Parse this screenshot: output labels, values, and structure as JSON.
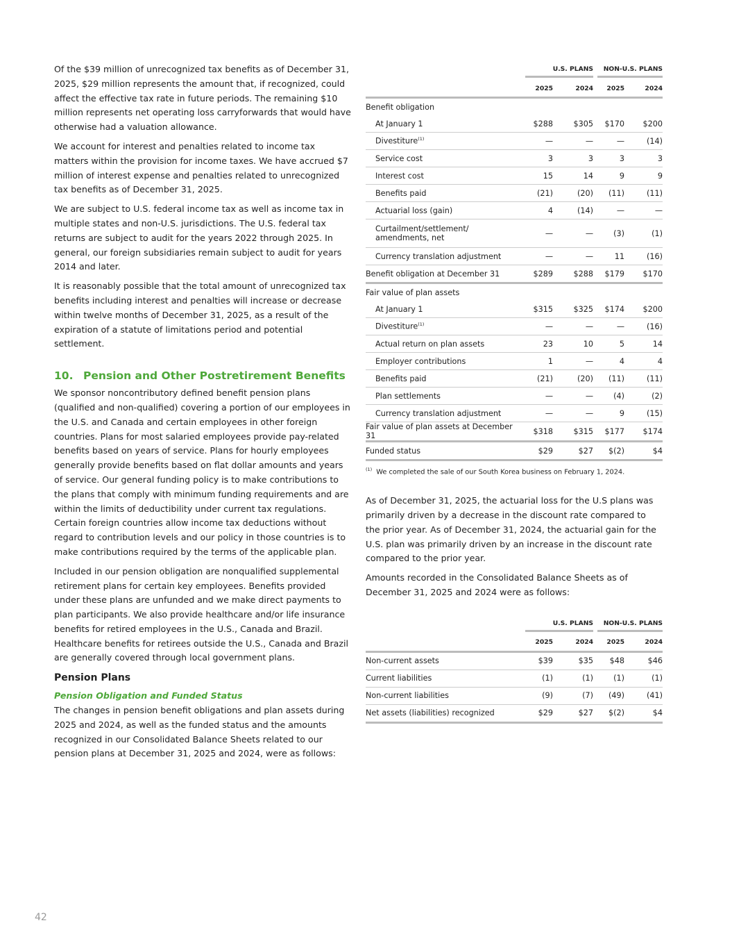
{
  "left": {
    "paragraphs": [
      "Of the $39 million of unrecognized tax benefits as of December 31, 2025, $29 million represents the amount that, if recognized, could affect the effective tax rate in future periods. The remaining $10 million represents net operating loss carryforwards that would have otherwise had a valuation allowance.",
      "We account for interest and penalties related to income tax matters within the provision for income taxes. We have accrued $7 million of interest expense and penalties related to unrecognized tax benefits as of December 31, 2025.",
      "We are subject to U.S. federal income tax as well as income tax in multiple states and non-U.S. jurisdictions. The U.S. federal tax returns are subject to audit for the years 2022 through 2025. In general, our foreign subsidiaries remain subject to audit for years 2014 and later.",
      "It is reasonably possible that the total amount of unrecognized tax benefits including interest and penalties will increase or decrease within twelve months of December 31, 2025, as a result of the expiration of a statute of limitations period and potential settlement."
    ],
    "section_heading": {
      "number": "10.",
      "title": "Pension and Other Postretirement Benefits"
    },
    "section_paragraphs": [
      "We sponsor noncontributory defined benefit pension plans (qualified and non-qualified) covering a portion of our employees in the U.S. and Canada and certain employees in other foreign countries. Plans for most salaried employees provide pay-related benefits based on years of service. Plans for hourly employees generally provide benefits based on flat dollar amounts and years of service. Our general funding policy is to make contributions to the plans that comply with minimum funding requirements and are within the limits of deductibility under current tax regulations. Certain foreign countries allow income tax deductions without regard to contribution levels and our policy in those countries is to make contributions required by the terms of the applicable plan.",
      "Included in our pension obligation are nonqualified supplemental retirement plans for certain key employees. Benefits provided under these plans are unfunded and we make direct payments to plan participants. We also provide healthcare and/or life insurance benefits for retired employees in the U.S., Canada and Brazil. Healthcare benefits for retirees outside the U.S., Canada and Brazil are generally covered through local government plans."
    ],
    "subheading": "Pension Plans",
    "sub_subheading": "Pension Obligation and Funded Status",
    "closing_paragraph": "The changes in pension benefit obligations and plan assets during 2025 and 2024, as well as the funded status and the amounts recognized in our Consolidated Balance Sheets related to our pension plans at December 31, 2025 and 2024, were as follows:"
  },
  "table1": {
    "group_headers": [
      "U.S. PLANS",
      "NON-U.S. PLANS"
    ],
    "years": [
      "2025",
      "2024",
      "2025",
      "2024"
    ],
    "sections": [
      {
        "heading": "Benefit obligation",
        "rows": [
          {
            "label": "At January 1",
            "cells": [
              "$288",
              "$305",
              "$170",
              "$200"
            ]
          },
          {
            "label": "Divestiture",
            "note": "(1)",
            "cells": [
              "—",
              "—",
              "—",
              "(14)"
            ]
          },
          {
            "label": "Service cost",
            "cells": [
              "3",
              "3",
              "3",
              "3"
            ]
          },
          {
            "label": "Interest cost",
            "cells": [
              "15",
              "14",
              "9",
              "9"
            ]
          },
          {
            "label": "Benefits paid",
            "cells": [
              "(21)",
              "(20)",
              "(11)",
              "(11)"
            ]
          },
          {
            "label": "Actuarial loss (gain)",
            "cells": [
              "4",
              "(14)",
              "—",
              "—"
            ]
          },
          {
            "label": "Curtailment/settlement/ amendments, net",
            "cells": [
              "—",
              "—",
              "(3)",
              "(1)"
            ]
          },
          {
            "label": "Currency translation adjustment",
            "cells": [
              "—",
              "—",
              "11",
              "(16)"
            ]
          }
        ],
        "total": {
          "label": "Benefit obligation at December 31",
          "cells": [
            "$289",
            "$288",
            "$179",
            "$170"
          ]
        }
      },
      {
        "heading": "Fair value of plan assets",
        "rows": [
          {
            "label": "At January 1",
            "cells": [
              "$315",
              "$325",
              "$174",
              "$200"
            ]
          },
          {
            "label": "Divestiture",
            "note": "(1)",
            "cells": [
              "—",
              "—",
              "—",
              "(16)"
            ]
          },
          {
            "label": "Actual return on plan assets",
            "cells": [
              "23",
              "10",
              "5",
              "14"
            ]
          },
          {
            "label": "Employer contributions",
            "cells": [
              "1",
              "—",
              "4",
              "4"
            ]
          },
          {
            "label": "Benefits paid",
            "cells": [
              "(21)",
              "(20)",
              "(11)",
              "(11)"
            ]
          },
          {
            "label": "Plan settlements",
            "cells": [
              "—",
              "—",
              "(4)",
              "(2)"
            ]
          },
          {
            "label": "Currency translation adjustment",
            "cells": [
              "—",
              "—",
              "9",
              "(15)"
            ]
          }
        ],
        "total": {
          "label": "Fair value of plan assets at December 31",
          "cells": [
            "$318",
            "$315",
            "$177",
            "$174"
          ]
        }
      }
    ],
    "summary": {
      "label": "Funded status",
      "cells": [
        "$29",
        "$27",
        "$(2)",
        "$4"
      ]
    }
  },
  "footnote": {
    "marker": "(1)",
    "text": "We completed the sale of our South Korea business on February 1, 2024."
  },
  "right_paragraphs": [
    "As of December 31, 2025, the actuarial loss for the U.S plans was primarily driven by a decrease in the discount rate compared to the prior year. As of December 31, 2024, the actuarial gain for the U.S. plan was primarily driven by an increase in the discount rate compared to the prior year.",
    "Amounts recorded in the Consolidated Balance Sheets as of December 31, 2025 and 2024 were as follows:"
  ],
  "table2": {
    "group_headers": [
      "U.S. PLANS",
      "NON-U.S. PLANS"
    ],
    "years": [
      "2025",
      "2024",
      "2025",
      "2024"
    ],
    "rows": [
      {
        "label": "Non-current assets",
        "cells": [
          "$39",
          "$35",
          "$48",
          "$46"
        ]
      },
      {
        "label": "Current liabilities",
        "cells": [
          "(1)",
          "(1)",
          "(1)",
          "(1)"
        ]
      },
      {
        "label": "Non-current liabilities",
        "cells": [
          "(9)",
          "(7)",
          "(49)",
          "(41)"
        ]
      }
    ],
    "total": {
      "label": "Net assets (liabilities) recognized",
      "cells": [
        "$29",
        "$27",
        "$(2)",
        "$4"
      ]
    }
  },
  "page_number": "42"
}
